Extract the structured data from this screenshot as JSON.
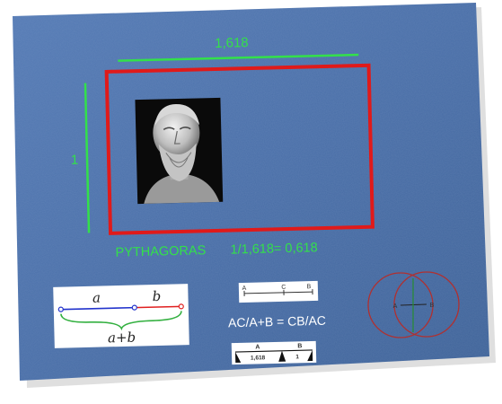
{
  "top_dimension_label": "1,618",
  "side_dimension_label": "1",
  "caption": {
    "name": "PYTHAGORAS",
    "formula": "1/1,618= 0,618"
  },
  "segment_diagram": {
    "label_a": "a",
    "label_b": "b",
    "label_sum": "a+b"
  },
  "line_diagram": {
    "label_a": "A",
    "label_c": "C",
    "label_b": "B"
  },
  "ratio_formula": "AC/A+B = CB/AC",
  "ruler_diagram": {
    "label_a": "A",
    "label_b": "B",
    "value_a": "1,618",
    "value_b": "1"
  },
  "circles_diagram": {
    "label_a": "A",
    "label_b": "B"
  },
  "colors": {
    "background_blue": "#4a6fa8",
    "frame_red": "#e01a1a",
    "dimension_green": "#33e04a",
    "segment_blue": "#2233cc",
    "segment_red": "#e02020"
  },
  "portrait": {
    "icon": "bust-icon"
  }
}
